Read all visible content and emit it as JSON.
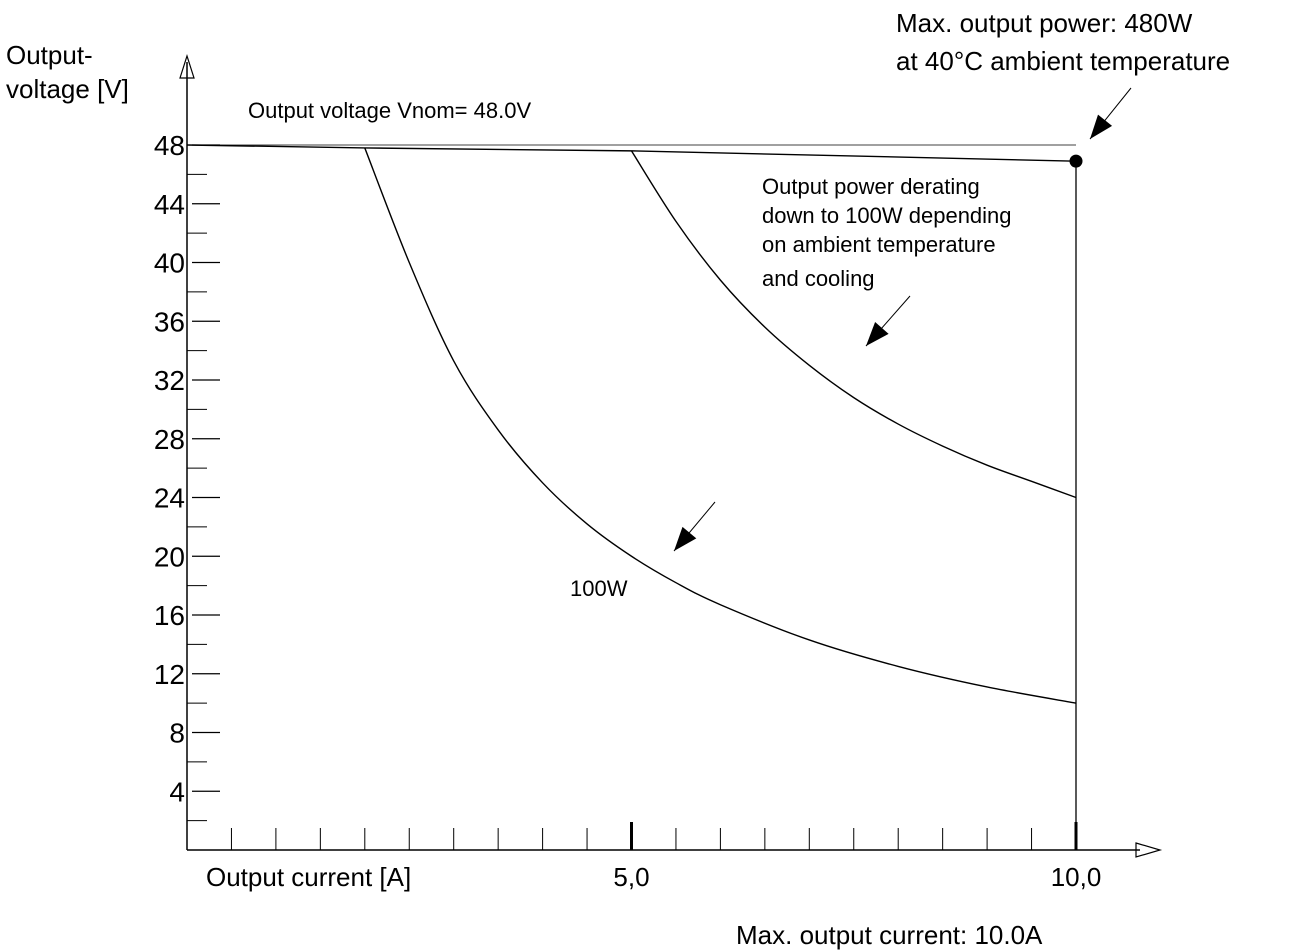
{
  "chart_data": {
    "type": "line",
    "title": "",
    "xlabel": "Output current [A]",
    "ylabel_line1": "Output-",
    "ylabel_line2": "voltage [V]",
    "xlim": [
      0,
      10
    ],
    "ylim": [
      0,
      48
    ],
    "y_ticks": [
      4,
      8,
      12,
      16,
      20,
      24,
      28,
      32,
      36,
      40,
      44,
      48
    ],
    "y_tick_labels": [
      "4",
      "8",
      "12",
      "16",
      "20",
      "24",
      "28",
      "32",
      "36",
      "40",
      "44",
      "48"
    ],
    "y_minor_step": 2,
    "x_minor_step": 0.5,
    "x_ticks": [
      5,
      10
    ],
    "x_tick_labels": [
      "5,0",
      "10,0"
    ],
    "grid": false,
    "series": [
      {
        "name": "Output voltage Vnom= 48.0V",
        "x": [
          0,
          10
        ],
        "y": [
          48,
          48
        ]
      },
      {
        "name": "",
        "x": [
          0,
          2,
          5,
          10
        ],
        "y": [
          48,
          47.8,
          47.6,
          46.9
        ]
      },
      {
        "name": "100W",
        "x": [
          2,
          2.5,
          3,
          3.5,
          4,
          4.5,
          5,
          5.5,
          6,
          7,
          8,
          9,
          10
        ],
        "y": [
          47.8,
          40,
          33.3,
          28.6,
          25,
          22.2,
          20,
          18.2,
          16.7,
          14.3,
          12.5,
          11.1,
          10
        ]
      },
      {
        "name": "",
        "x": [
          5,
          5.5,
          6,
          6.5,
          7,
          7.5,
          8,
          8.5,
          9,
          9.5,
          10
        ],
        "y": [
          47.6,
          42.8,
          38.8,
          35.6,
          33,
          30.8,
          29,
          27.5,
          26.2,
          25.1,
          24
        ]
      }
    ],
    "max_point": {
      "x": 10,
      "y": 46.9
    }
  },
  "annotations": {
    "max_power_line1": "Max. output power: 480W",
    "max_power_line2": "at 40°C ambient temperature",
    "vnom": "Output voltage Vnom= 48.0V",
    "derating_line1": "Output power derating",
    "derating_line2": "down to 100W depending",
    "derating_line3": "on ambient temperature",
    "derating_line4": "and cooling",
    "label_100w": "100W",
    "max_current": "Max. output current: 10.0A"
  }
}
